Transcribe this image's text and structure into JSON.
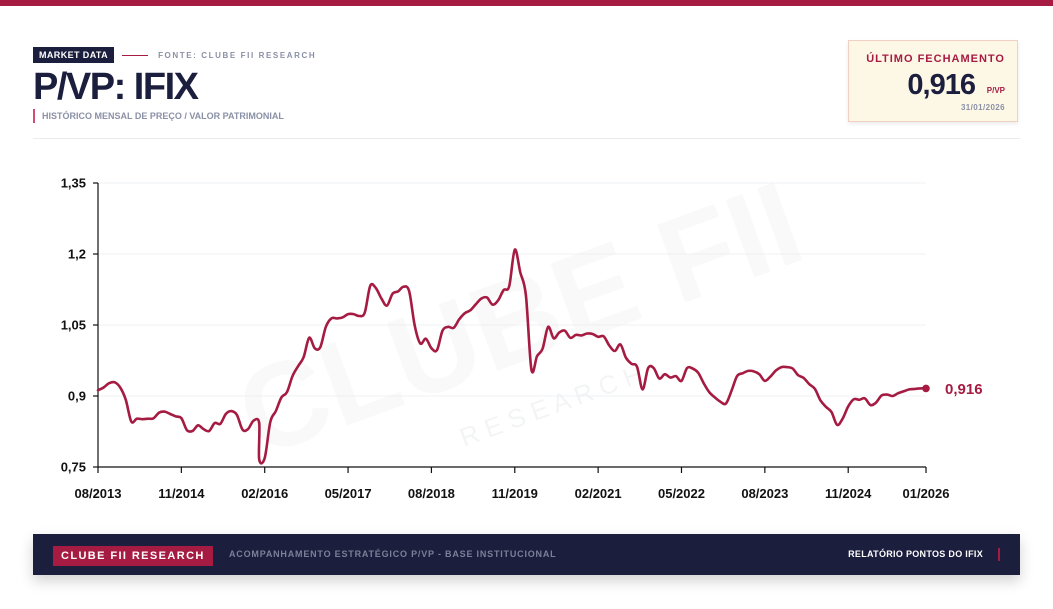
{
  "header": {
    "tag": "MARKET DATA",
    "source": "FONTE: CLUBE FII RESEARCH",
    "title": "P/VP: IFIX",
    "subtitle": "HISTÓRICO MENSAL DE PREÇO / VALOR PATRIMONIAL"
  },
  "last_close": {
    "label": "ÚLTIMO FECHAMENTO",
    "value": "0,916",
    "unit": "P/VP",
    "date": "31/01/2026"
  },
  "watermark": {
    "main": "CLUBE FII",
    "sub": "R E S E A R C H"
  },
  "footer": {
    "brand": "CLUBE FII RESEARCH",
    "description": "ACOMPANHAMENTO ESTRATÉGICO P/VP - BASE INSTITUCIONAL",
    "report": "RELATÓRIO PONTOS DO IFIX"
  },
  "colors": {
    "accent": "#a51b42",
    "navy": "#1b1e3d",
    "muted": "#8a90a6",
    "grid": "#eef0f4"
  },
  "chart_data": {
    "type": "line",
    "title": "P/VP: IFIX",
    "ylim": [
      0.75,
      1.35
    ],
    "y_ticks": [
      0.75,
      0.9,
      1.05,
      1.2,
      1.35
    ],
    "y_tick_labels": [
      "0,75",
      "0,9",
      "1,05",
      "1,2",
      "1,35"
    ],
    "x_ticks": [
      "2013-08",
      "2014-11",
      "2016-02",
      "2017-05",
      "2018-08",
      "2019-11",
      "2021-02",
      "2022-05",
      "2023-08",
      "2024-11",
      "2026-01"
    ],
    "x_tick_labels": [
      "08/2013",
      "11/2014",
      "02/2016",
      "05/2017",
      "08/2018",
      "11/2019",
      "02/2021",
      "05/2022",
      "08/2023",
      "11/2024",
      "01/2026"
    ],
    "grid": true,
    "legend": "none",
    "end_label": "0,916",
    "series": [
      {
        "color": "#a51b42",
        "points": [
          [
            "2013-08",
            0.912
          ],
          [
            "2013-09",
            0.918
          ],
          [
            "2013-10",
            0.927
          ],
          [
            "2013-11",
            0.929
          ],
          [
            "2013-12",
            0.918
          ],
          [
            "2014-01",
            0.892
          ],
          [
            "2014-02",
            0.846
          ],
          [
            "2014-03",
            0.852
          ],
          [
            "2014-04",
            0.851
          ],
          [
            "2014-05",
            0.852
          ],
          [
            "2014-06",
            0.853
          ],
          [
            "2014-07",
            0.865
          ],
          [
            "2014-08",
            0.867
          ],
          [
            "2014-09",
            0.862
          ],
          [
            "2014-10",
            0.857
          ],
          [
            "2014-11",
            0.853
          ],
          [
            "2014-12",
            0.828
          ],
          [
            "2015-01",
            0.826
          ],
          [
            "2015-02",
            0.838
          ],
          [
            "2015-03",
            0.83
          ],
          [
            "2015-04",
            0.826
          ],
          [
            "2015-05",
            0.843
          ],
          [
            "2015-06",
            0.841
          ],
          [
            "2015-07",
            0.862
          ],
          [
            "2015-08",
            0.868
          ],
          [
            "2015-09",
            0.86
          ],
          [
            "2015-10",
            0.829
          ],
          [
            "2015-11",
            0.83
          ],
          [
            "2015-12",
            0.848
          ],
          [
            "2015-13",
            0.843
          ],
          [
            "2016-01",
            0.766
          ],
          [
            "2016-02",
            0.769
          ],
          [
            "2016-03",
            0.845
          ],
          [
            "2016-04",
            0.868
          ],
          [
            "2016-05",
            0.897
          ],
          [
            "2016-06",
            0.908
          ],
          [
            "2016-07",
            0.942
          ],
          [
            "2016-08",
            0.963
          ],
          [
            "2016-09",
            0.982
          ],
          [
            "2016-10",
            1.023
          ],
          [
            "2016-11",
            1.001
          ],
          [
            "2016-12",
            1.003
          ],
          [
            "2017-01",
            1.046
          ],
          [
            "2017-02",
            1.064
          ],
          [
            "2017-03",
            1.064
          ],
          [
            "2017-04",
            1.066
          ],
          [
            "2017-05",
            1.073
          ],
          [
            "2017-06",
            1.073
          ],
          [
            "2017-07",
            1.069
          ],
          [
            "2017-08",
            1.076
          ],
          [
            "2017-09",
            1.133
          ],
          [
            "2017-10",
            1.128
          ],
          [
            "2017-11",
            1.106
          ],
          [
            "2017-12",
            1.091
          ],
          [
            "2018-01",
            1.116
          ],
          [
            "2018-02",
            1.121
          ],
          [
            "2018-03",
            1.131
          ],
          [
            "2018-04",
            1.121
          ],
          [
            "2018-05",
            1.048
          ],
          [
            "2018-06",
            1.011
          ],
          [
            "2018-07",
            1.021
          ],
          [
            "2018-08",
            1.001
          ],
          [
            "2018-09",
            0.997
          ],
          [
            "2018-10",
            1.038
          ],
          [
            "2018-11",
            1.046
          ],
          [
            "2018-12",
            1.044
          ],
          [
            "2019-01",
            1.062
          ],
          [
            "2019-02",
            1.075
          ],
          [
            "2019-03",
            1.081
          ],
          [
            "2019-04",
            1.094
          ],
          [
            "2019-05",
            1.106
          ],
          [
            "2019-06",
            1.108
          ],
          [
            "2019-07",
            1.093
          ],
          [
            "2019-08",
            1.102
          ],
          [
            "2019-09",
            1.124
          ],
          [
            "2019-10",
            1.132
          ],
          [
            "2019-11",
            1.209
          ],
          [
            "2019-12",
            1.161
          ],
          [
            "2020-01",
            1.113
          ],
          [
            "2020-02",
            0.956
          ],
          [
            "2020-03",
            0.984
          ],
          [
            "2020-04",
            1.0
          ],
          [
            "2020-05",
            1.046
          ],
          [
            "2020-06",
            1.022
          ],
          [
            "2020-07",
            1.034
          ],
          [
            "2020-08",
            1.038
          ],
          [
            "2020-09",
            1.023
          ],
          [
            "2020-10",
            1.029
          ],
          [
            "2020-11",
            1.028
          ],
          [
            "2020-12",
            1.032
          ],
          [
            "2021-01",
            1.031
          ],
          [
            "2021-02",
            1.025
          ],
          [
            "2021-03",
            1.026
          ],
          [
            "2021-04",
            1.007
          ],
          [
            "2021-05",
            0.995
          ],
          [
            "2021-06",
            1.009
          ],
          [
            "2021-07",
            0.981
          ],
          [
            "2021-08",
            0.968
          ],
          [
            "2021-09",
            0.962
          ],
          [
            "2021-10",
            0.914
          ],
          [
            "2021-11",
            0.959
          ],
          [
            "2021-12",
            0.959
          ],
          [
            "2022-01",
            0.937
          ],
          [
            "2022-02",
            0.946
          ],
          [
            "2022-03",
            0.939
          ],
          [
            "2022-04",
            0.942
          ],
          [
            "2022-05",
            0.932
          ],
          [
            "2022-06",
            0.959
          ],
          [
            "2022-07",
            0.958
          ],
          [
            "2022-08",
            0.949
          ],
          [
            "2022-09",
            0.927
          ],
          [
            "2022-10",
            0.908
          ],
          [
            "2022-11",
            0.897
          ],
          [
            "2022-12",
            0.888
          ],
          [
            "2023-01",
            0.884
          ],
          [
            "2023-02",
            0.911
          ],
          [
            "2023-03",
            0.942
          ],
          [
            "2023-04",
            0.948
          ],
          [
            "2023-05",
            0.953
          ],
          [
            "2023-06",
            0.952
          ],
          [
            "2023-07",
            0.946
          ],
          [
            "2023-08",
            0.932
          ],
          [
            "2023-09",
            0.941
          ],
          [
            "2023-10",
            0.954
          ],
          [
            "2023-11",
            0.961
          ],
          [
            "2023-12",
            0.961
          ],
          [
            "2024-01",
            0.958
          ],
          [
            "2024-02",
            0.944
          ],
          [
            "2024-03",
            0.938
          ],
          [
            "2024-04",
            0.925
          ],
          [
            "2024-05",
            0.915
          ],
          [
            "2024-06",
            0.891
          ],
          [
            "2024-07",
            0.877
          ],
          [
            "2024-08",
            0.866
          ],
          [
            "2024-09",
            0.839
          ],
          [
            "2024-10",
            0.852
          ],
          [
            "2024-11",
            0.878
          ],
          [
            "2024-12",
            0.893
          ],
          [
            "2025-01",
            0.892
          ],
          [
            "2025-02",
            0.895
          ],
          [
            "2025-03",
            0.881
          ],
          [
            "2025-04",
            0.886
          ],
          [
            "2025-05",
            0.901
          ],
          [
            "2025-06",
            0.903
          ],
          [
            "2025-07",
            0.9
          ],
          [
            "2025-08",
            0.906
          ],
          [
            "2025-09",
            0.91
          ],
          [
            "2025-10",
            0.914
          ],
          [
            "2025-11",
            0.915
          ],
          [
            "2025-12",
            0.916
          ],
          [
            "2026-01",
            0.916
          ]
        ]
      }
    ]
  }
}
